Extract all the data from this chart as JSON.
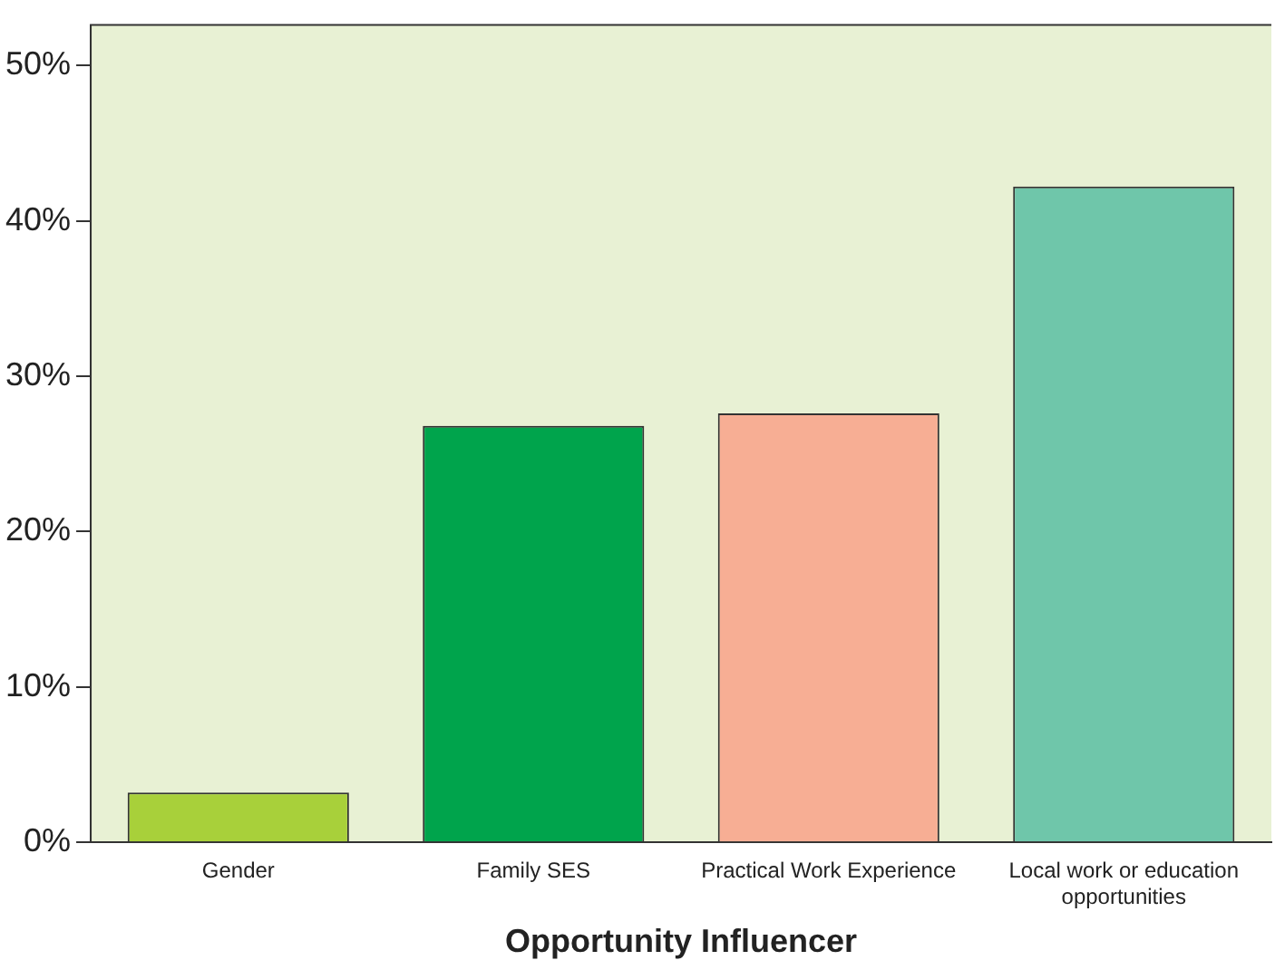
{
  "chart_data": {
    "type": "bar",
    "xlabel": "Opportunity Influencer",
    "categories": [
      "Gender",
      "Family SES",
      "Practical Work Experience",
      "Local work or education opportunities"
    ],
    "values": [
      3.2,
      26.8,
      27.6,
      42.2
    ],
    "colors": [
      "#a8d03a",
      "#00a44c",
      "#f7ae94",
      "#6fc6aa"
    ],
    "ylim": [
      0,
      52.6
    ],
    "yticks": [
      {
        "value": 0,
        "label": "0%"
      },
      {
        "value": 10,
        "label": "10%"
      },
      {
        "value": 20,
        "label": "20%"
      },
      {
        "value": 30,
        "label": "30%"
      },
      {
        "value": 40,
        "label": "40%"
      },
      {
        "value": 50,
        "label": "50%"
      }
    ],
    "grid": false,
    "legend": false
  }
}
